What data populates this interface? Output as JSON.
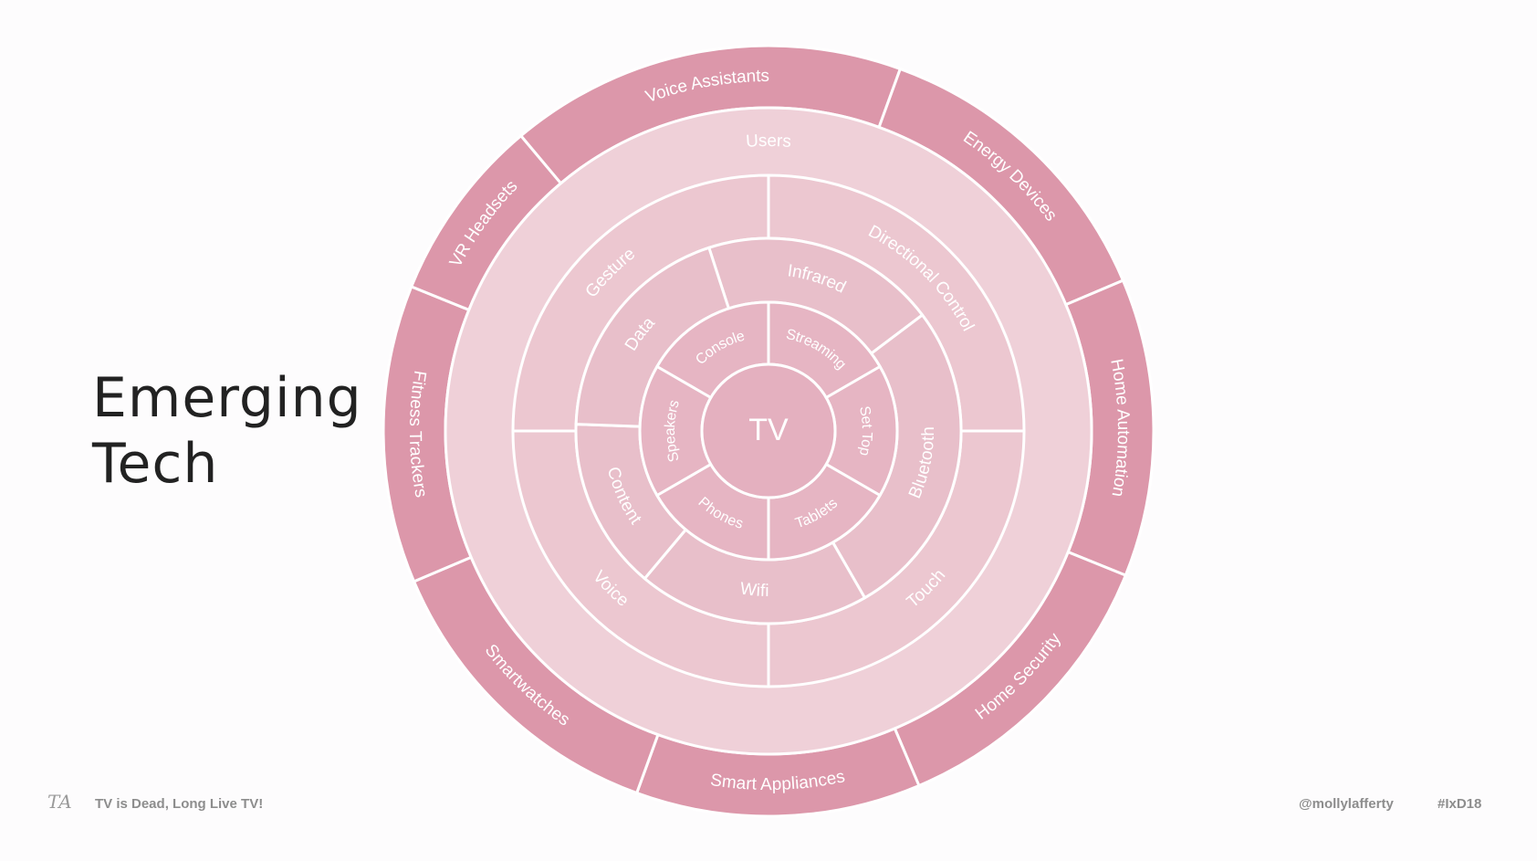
{
  "title": {
    "line1": "Emerging",
    "line2": "Tech"
  },
  "footer": {
    "logo": "TA",
    "talk": "TV is Dead, Long Live TV!",
    "handle": "@mollylafferty",
    "hashtag": "#IxD18"
  },
  "colors": {
    "outer": "#dc97aa",
    "users": "#efd0d8",
    "ring_mid": "#ecc7d0",
    "ring_inner": "#e8bfca",
    "ring_core": "#e6b5c3",
    "center": "#e4b0bf",
    "stroke": "#ffffff",
    "label": "#ffffff"
  },
  "diagram": {
    "center": "TV",
    "ring1": [
      "Console",
      "Streaming",
      "Set Top",
      "Tablets",
      "Phones",
      "Speakers"
    ],
    "ring2": [
      "Infrared",
      "Bluetooth",
      "Wifi",
      "Content",
      "Data"
    ],
    "ring3": [
      "Directional Control",
      "Touch",
      "Voice",
      "Gesture"
    ],
    "ring4": "Users",
    "ring5": [
      "Voice Assistants",
      "Energy Devices",
      "Home Automation",
      "Home Security",
      "Smart Appliances",
      "Smartwatches",
      "Fitness Trackers",
      "VR Headsets"
    ]
  }
}
